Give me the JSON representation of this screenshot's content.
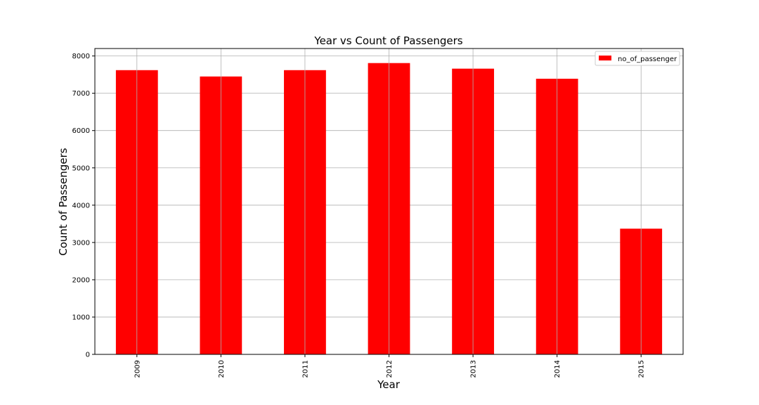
{
  "chart_data": {
    "type": "bar",
    "title": "Year vs Count of Passengers",
    "xlabel": "Year",
    "ylabel": "Count of Passengers",
    "categories": [
      "2009",
      "2010",
      "2011",
      "2012",
      "2013",
      "2014",
      "2015"
    ],
    "series": [
      {
        "name": "no_of_passenger",
        "values": [
          7620,
          7450,
          7620,
          7810,
          7660,
          7390,
          3370
        ],
        "color": "#ff0000"
      }
    ],
    "ylim": [
      0,
      8200
    ],
    "yticks": [
      0,
      1000,
      2000,
      3000,
      4000,
      5000,
      6000,
      7000,
      8000
    ],
    "grid": true,
    "legend_position": "top-right"
  }
}
